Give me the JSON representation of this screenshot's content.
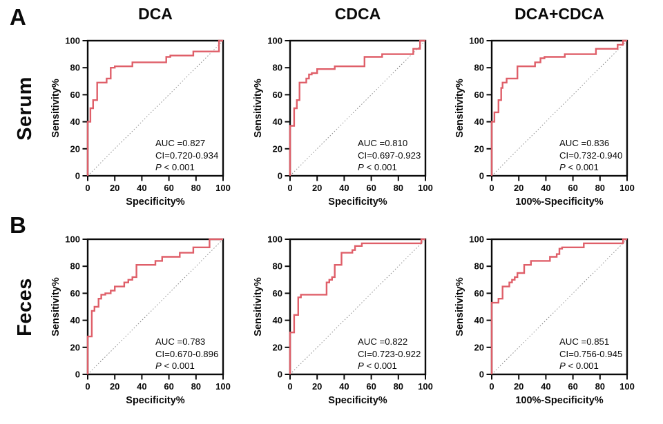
{
  "figure": {
    "panel_a_label": "A",
    "panel_b_label": "B",
    "row_labels": {
      "a": "Serum",
      "b": "Feces"
    },
    "column_titles": [
      "DCA",
      "CDCA",
      "DCA+CDCA"
    ],
    "accent_red": "#df5f69",
    "annotation_red": "#e06a74",
    "axis_color": "#0a0a0a",
    "diagonal_color": "#8a8a8a"
  },
  "chart_data": [
    {
      "type": "line",
      "row": "Serum",
      "column": "DCA",
      "title": "DCA",
      "xlabel": "Specificity%",
      "ylabel": "Sensitivity%",
      "xlim": [
        0,
        100
      ],
      "ylim": [
        0,
        100
      ],
      "xticks": [
        0,
        20,
        40,
        60,
        80,
        100
      ],
      "yticks": [
        0,
        20,
        40,
        60,
        80,
        100
      ],
      "grid": false,
      "diagonal": true,
      "curve_color": "#df5f69",
      "roc_points": [
        [
          0,
          0
        ],
        [
          0,
          40
        ],
        [
          2,
          40
        ],
        [
          2,
          50
        ],
        [
          4,
          50
        ],
        [
          4,
          56
        ],
        [
          7,
          56
        ],
        [
          7,
          69
        ],
        [
          14,
          69
        ],
        [
          14,
          72
        ],
        [
          17,
          72
        ],
        [
          17,
          80
        ],
        [
          20,
          80
        ],
        [
          20,
          81
        ],
        [
          33,
          81
        ],
        [
          33,
          84
        ],
        [
          58,
          84
        ],
        [
          58,
          88
        ],
        [
          61,
          88
        ],
        [
          61,
          89
        ],
        [
          78,
          89
        ],
        [
          78,
          92
        ],
        [
          97,
          92
        ],
        [
          97,
          100
        ],
        [
          100,
          100
        ]
      ],
      "annotation": {
        "auc": "AUC =0.827",
        "ci": "CI=0.720-0.934",
        "p_label": "P",
        "p_value": " < 0.001"
      }
    },
    {
      "type": "line",
      "row": "Serum",
      "column": "CDCA",
      "title": "CDCA",
      "xlabel": "Specificity%",
      "ylabel": "Sensitivity%",
      "xlim": [
        0,
        100
      ],
      "ylim": [
        0,
        100
      ],
      "xticks": [
        0,
        20,
        40,
        60,
        80,
        100
      ],
      "yticks": [
        0,
        20,
        40,
        60,
        80,
        100
      ],
      "grid": false,
      "diagonal": true,
      "curve_color": "#df5f69",
      "roc_points": [
        [
          0,
          0
        ],
        [
          0,
          37
        ],
        [
          3,
          37
        ],
        [
          3,
          50
        ],
        [
          5,
          50
        ],
        [
          5,
          56
        ],
        [
          7,
          56
        ],
        [
          7,
          69
        ],
        [
          12,
          69
        ],
        [
          12,
          72
        ],
        [
          14,
          72
        ],
        [
          14,
          75
        ],
        [
          16,
          75
        ],
        [
          16,
          76
        ],
        [
          20,
          76
        ],
        [
          20,
          79
        ],
        [
          33,
          79
        ],
        [
          33,
          81
        ],
        [
          55,
          81
        ],
        [
          55,
          88
        ],
        [
          68,
          88
        ],
        [
          68,
          90
        ],
        [
          91,
          90
        ],
        [
          91,
          94
        ],
        [
          96,
          94
        ],
        [
          96,
          100
        ],
        [
          100,
          100
        ]
      ],
      "annotation": {
        "auc": "AUC =0.810",
        "ci": "CI=0.697-0.923",
        "p_label": "P",
        "p_value": " < 0.001"
      }
    },
    {
      "type": "line",
      "row": "Serum",
      "column": "DCA+CDCA",
      "title": "DCA+CDCA",
      "xlabel": "100%-Specificity%",
      "ylabel": "Sensitivity%",
      "xlim": [
        0,
        100
      ],
      "ylim": [
        0,
        100
      ],
      "xticks": [
        0,
        20,
        40,
        60,
        80,
        100
      ],
      "yticks": [
        0,
        20,
        40,
        60,
        80,
        100
      ],
      "grid": false,
      "diagonal": true,
      "curve_color": "#df5f69",
      "roc_points": [
        [
          0,
          0
        ],
        [
          0,
          40
        ],
        [
          2,
          40
        ],
        [
          2,
          47
        ],
        [
          5,
          47
        ],
        [
          5,
          56
        ],
        [
          7,
          56
        ],
        [
          7,
          65
        ],
        [
          8,
          65
        ],
        [
          8,
          69
        ],
        [
          11,
          69
        ],
        [
          11,
          72
        ],
        [
          19,
          72
        ],
        [
          19,
          81
        ],
        [
          32,
          81
        ],
        [
          32,
          84
        ],
        [
          36,
          84
        ],
        [
          36,
          87
        ],
        [
          39,
          87
        ],
        [
          39,
          88
        ],
        [
          54,
          88
        ],
        [
          54,
          90
        ],
        [
          77,
          90
        ],
        [
          77,
          94
        ],
        [
          93,
          94
        ],
        [
          93,
          97
        ],
        [
          97,
          97
        ],
        [
          97,
          100
        ],
        [
          100,
          100
        ]
      ],
      "annotation": {
        "auc": "AUC =0.836",
        "ci": "CI=0.732-0.940",
        "p_label": "P",
        "p_value": " < 0.001"
      }
    },
    {
      "type": "line",
      "row": "Feces",
      "column": "DCA",
      "title": "",
      "xlabel": "Specificity%",
      "ylabel": "Sensitivity%",
      "xlim": [
        0,
        100
      ],
      "ylim": [
        0,
        100
      ],
      "xticks": [
        0,
        20,
        40,
        60,
        80,
        100
      ],
      "yticks": [
        0,
        20,
        40,
        60,
        80,
        100
      ],
      "grid": false,
      "diagonal": true,
      "curve_color": "#df5f69",
      "roc_points": [
        [
          0,
          0
        ],
        [
          0,
          28
        ],
        [
          3,
          28
        ],
        [
          3,
          47
        ],
        [
          5,
          47
        ],
        [
          5,
          50
        ],
        [
          8,
          50
        ],
        [
          8,
          56
        ],
        [
          10,
          56
        ],
        [
          10,
          59
        ],
        [
          13,
          59
        ],
        [
          13,
          60
        ],
        [
          17,
          60
        ],
        [
          17,
          62
        ],
        [
          20,
          62
        ],
        [
          20,
          65
        ],
        [
          27,
          65
        ],
        [
          27,
          68
        ],
        [
          30,
          68
        ],
        [
          30,
          70
        ],
        [
          33,
          70
        ],
        [
          33,
          72
        ],
        [
          36,
          72
        ],
        [
          36,
          81
        ],
        [
          50,
          81
        ],
        [
          50,
          84
        ],
        [
          55,
          84
        ],
        [
          55,
          87
        ],
        [
          68,
          87
        ],
        [
          68,
          90
        ],
        [
          78,
          90
        ],
        [
          78,
          94
        ],
        [
          90,
          94
        ],
        [
          90,
          100
        ],
        [
          100,
          100
        ]
      ],
      "annotation": {
        "auc": "AUC =0.783",
        "ci": "CI=0.670-0.896",
        "p_label": "P",
        "p_value": " < 0.001"
      }
    },
    {
      "type": "line",
      "row": "Feces",
      "column": "CDCA",
      "title": "",
      "xlabel": "Specificity%",
      "ylabel": "Sensitivity%",
      "xlim": [
        0,
        100
      ],
      "ylim": [
        0,
        100
      ],
      "xticks": [
        0,
        20,
        40,
        60,
        80,
        100
      ],
      "yticks": [
        0,
        20,
        40,
        60,
        80,
        100
      ],
      "grid": false,
      "diagonal": true,
      "curve_color": "#df5f69",
      "roc_points": [
        [
          0,
          0
        ],
        [
          0,
          31
        ],
        [
          3,
          31
        ],
        [
          3,
          44
        ],
        [
          6,
          44
        ],
        [
          6,
          57
        ],
        [
          8,
          57
        ],
        [
          8,
          59
        ],
        [
          27,
          59
        ],
        [
          27,
          68
        ],
        [
          29,
          68
        ],
        [
          29,
          70
        ],
        [
          31,
          70
        ],
        [
          31,
          72
        ],
        [
          33,
          72
        ],
        [
          33,
          81
        ],
        [
          38,
          81
        ],
        [
          38,
          90
        ],
        [
          46,
          90
        ],
        [
          46,
          92
        ],
        [
          48,
          92
        ],
        [
          48,
          95
        ],
        [
          53,
          95
        ],
        [
          53,
          97
        ],
        [
          97,
          97
        ],
        [
          97,
          100
        ],
        [
          100,
          100
        ]
      ],
      "annotation": {
        "auc": "AUC =0.822",
        "ci": "CI=0.723-0.922",
        "p_label": "P",
        "p_value": " < 0.001"
      }
    },
    {
      "type": "line",
      "row": "Feces",
      "column": "DCA+CDCA",
      "title": "",
      "xlabel": "100%-Specificity%",
      "ylabel": "Sensitivity%",
      "xlim": [
        0,
        100
      ],
      "ylim": [
        0,
        100
      ],
      "xticks": [
        0,
        20,
        40,
        60,
        80,
        100
      ],
      "yticks": [
        0,
        20,
        40,
        60,
        80,
        100
      ],
      "grid": false,
      "diagonal": true,
      "curve_color": "#df5f69",
      "roc_points": [
        [
          0,
          0
        ],
        [
          0,
          53
        ],
        [
          5,
          53
        ],
        [
          5,
          56
        ],
        [
          8,
          56
        ],
        [
          8,
          65
        ],
        [
          13,
          65
        ],
        [
          13,
          68
        ],
        [
          15,
          68
        ],
        [
          15,
          70
        ],
        [
          17,
          70
        ],
        [
          17,
          72
        ],
        [
          19,
          72
        ],
        [
          19,
          75
        ],
        [
          24,
          75
        ],
        [
          24,
          81
        ],
        [
          29,
          81
        ],
        [
          29,
          84
        ],
        [
          43,
          84
        ],
        [
          43,
          87
        ],
        [
          48,
          87
        ],
        [
          48,
          89
        ],
        [
          50,
          89
        ],
        [
          50,
          93
        ],
        [
          52,
          93
        ],
        [
          52,
          94
        ],
        [
          68,
          94
        ],
        [
          68,
          97
        ],
        [
          97,
          97
        ],
        [
          97,
          100
        ],
        [
          100,
          100
        ]
      ],
      "annotation": {
        "auc": "AUC =0.851",
        "ci": "CI=0.756-0.945",
        "p_label": "P",
        "p_value": " < 0.001"
      }
    }
  ]
}
